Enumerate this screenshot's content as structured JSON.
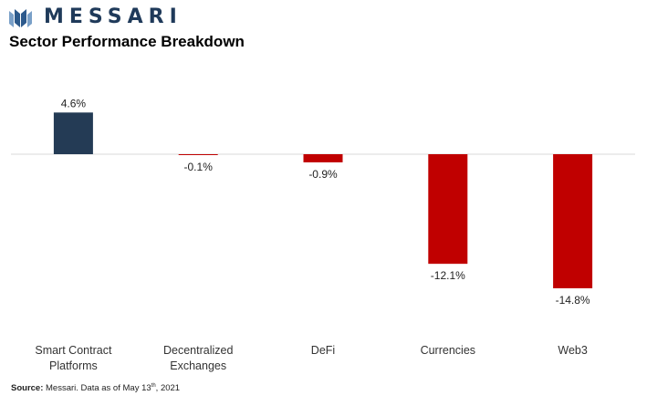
{
  "brand": {
    "name": "MESSARI",
    "logo_icon": "messari-logo-icon",
    "color": "#1f3a5a"
  },
  "title": "Sector Performance Breakdown",
  "footer": {
    "source_label": "Source:",
    "source_text": "Messari. Data as of May 13",
    "ordinal_suffix": "th",
    "year_text": ", 2021"
  },
  "chart_data": {
    "type": "bar",
    "title": "Sector Performance Breakdown",
    "categories": [
      [
        "Smart Contract",
        "Platforms"
      ],
      [
        "Decentralized",
        "Exchanges"
      ],
      [
        "DeFi"
      ],
      [
        "Currencies"
      ],
      [
        "Web3"
      ]
    ],
    "values": [
      4.6,
      -0.1,
      -0.9,
      -12.1,
      -14.8
    ],
    "data_labels": [
      "4.6%",
      "-0.1%",
      "-0.9%",
      "-12.1%",
      "-14.8%"
    ],
    "unit": "%",
    "ylim": [
      -14.8,
      4.6
    ],
    "grid": false,
    "legend": "none",
    "colors": {
      "positive": "#243b55",
      "negative": "#c00000",
      "baseline": "#d9d9d9"
    }
  }
}
